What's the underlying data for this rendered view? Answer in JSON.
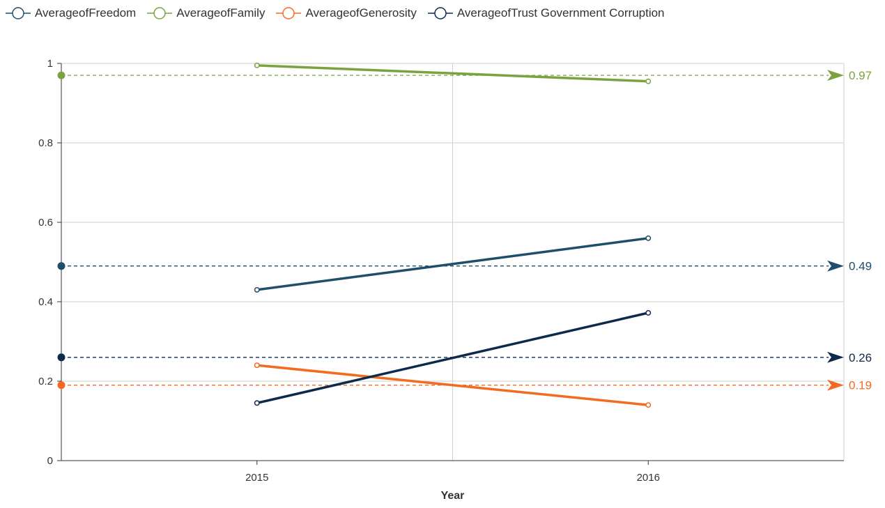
{
  "chart_data": {
    "type": "line",
    "xlabel": "Year",
    "ylabel": "",
    "categories": [
      "2015",
      "2016"
    ],
    "ylim": [
      0,
      1
    ],
    "yticks": [
      "0",
      "0.2",
      "0.4",
      "0.6",
      "0.8",
      "1"
    ],
    "grid": true,
    "legend_position": "top-left",
    "series": [
      {
        "name": "AverageofFreedom",
        "color": "#1f4e6b",
        "values": [
          0.43,
          0.56
        ]
      },
      {
        "name": "AverageofFamily",
        "color": "#7aa33f",
        "values": [
          0.995,
          0.955
        ]
      },
      {
        "name": "AverageofGenerosity",
        "color": "#f26b21",
        "values": [
          0.24,
          0.14
        ]
      },
      {
        "name": "AverageofTrust Government Corruption",
        "color": "#0d2a4d",
        "values": [
          0.145,
          0.372
        ]
      }
    ],
    "reference_lines": [
      {
        "series": "AverageofFamily",
        "value": 0.97,
        "label": "0.97",
        "color": "#7aa33f"
      },
      {
        "series": "AverageofFreedom",
        "value": 0.49,
        "label": "0.49",
        "color": "#1f4e6b"
      },
      {
        "series": "AverageofTrust Government Corruption",
        "value": 0.26,
        "label": "0.26",
        "color": "#0d2a4d"
      },
      {
        "series": "AverageofGenerosity",
        "value": 0.19,
        "label": "0.19",
        "color": "#f26b21"
      }
    ]
  }
}
